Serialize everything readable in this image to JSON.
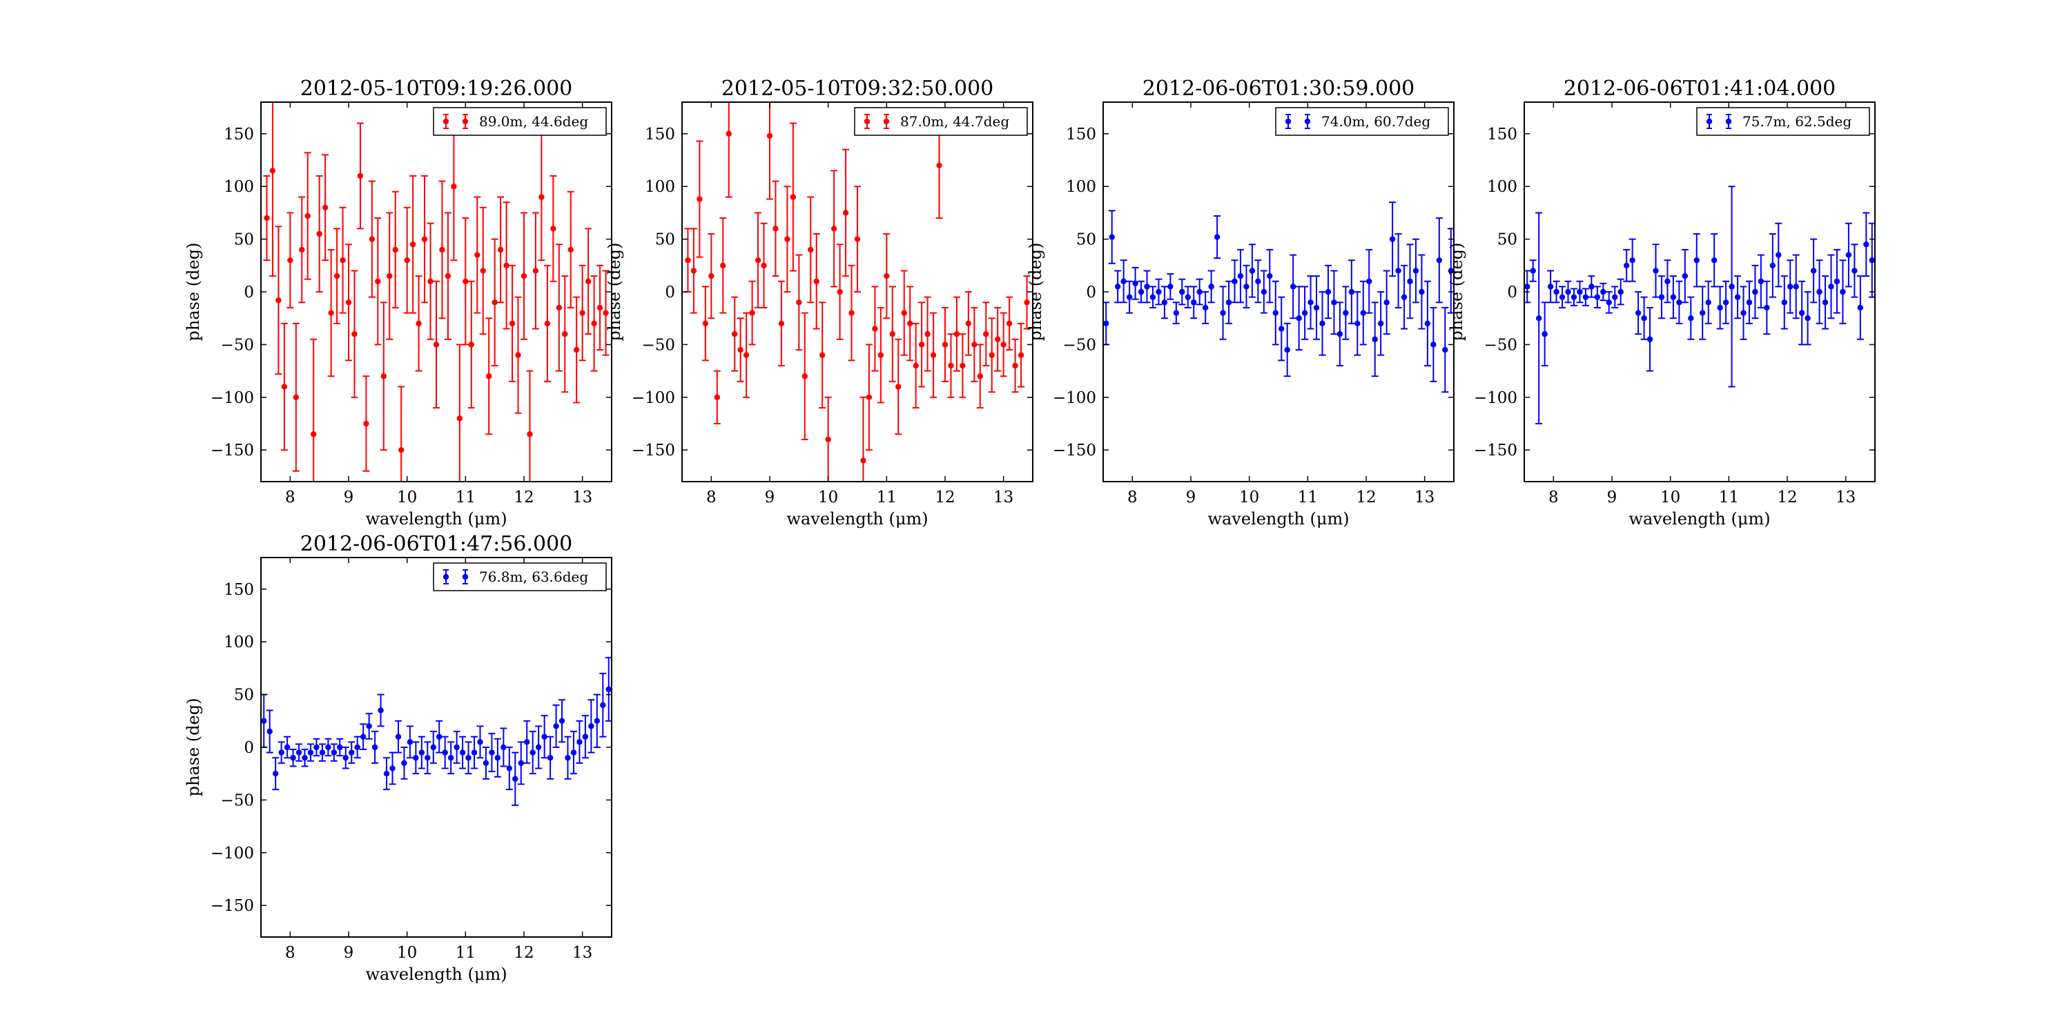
{
  "chart_data": [
    {
      "type": "scatter",
      "title": "2012-05-10T09:19:26.000",
      "xlabel": "wavelength (μm)",
      "ylabel": "phase (deg)",
      "xlim": [
        7.5,
        13.5
      ],
      "ylim": [
        -180,
        180
      ],
      "xticks": [
        "8",
        "9",
        "10",
        "11",
        "12",
        "13"
      ],
      "yticks": [
        "150",
        "100",
        "50",
        "0",
        "−50",
        "−100",
        "−150"
      ],
      "legend_position": "top-right",
      "series": [
        {
          "name": "89.0m, 44.6deg",
          "color": "#ff0000",
          "x": [
            7.6,
            7.7,
            7.8,
            7.9,
            8.0,
            8.1,
            8.2,
            8.3,
            8.4,
            8.5,
            8.6,
            8.7,
            8.8,
            8.9,
            9.0,
            9.1,
            9.2,
            9.3,
            9.4,
            9.5,
            9.6,
            9.7,
            9.8,
            9.9,
            10.0,
            10.1,
            10.2,
            10.3,
            10.4,
            10.5,
            10.6,
            10.7,
            10.8,
            10.9,
            11.0,
            11.1,
            11.2,
            11.3,
            11.4,
            11.5,
            11.6,
            11.7,
            11.8,
            11.9,
            12.0,
            12.1,
            12.2,
            12.3,
            12.4,
            12.5,
            12.6,
            12.7,
            12.8,
            12.9,
            13.0,
            13.1,
            13.2,
            13.3,
            13.4
          ],
          "y": [
            70,
            115,
            -8,
            -90,
            30,
            -100,
            40,
            72,
            -135,
            55,
            80,
            -20,
            15,
            30,
            -10,
            -40,
            110,
            -125,
            50,
            10,
            -80,
            15,
            40,
            -150,
            30,
            45,
            -30,
            50,
            10,
            -50,
            40,
            15,
            100,
            -120,
            10,
            -50,
            35,
            20,
            -80,
            -10,
            40,
            25,
            -30,
            -60,
            15,
            -135,
            20,
            90,
            -30,
            60,
            -15,
            -40,
            40,
            -55,
            -20,
            10,
            -30,
            -15,
            -20
          ],
          "err": [
            40,
            100,
            70,
            60,
            45,
            70,
            50,
            60,
            90,
            55,
            50,
            60,
            45,
            50,
            55,
            60,
            50,
            45,
            55,
            60,
            70,
            60,
            55,
            60,
            50,
            65,
            45,
            60,
            55,
            60,
            65,
            60,
            70,
            70,
            60,
            60,
            55,
            60,
            55,
            60,
            50,
            60,
            55,
            55,
            60,
            60,
            55,
            60,
            55,
            50,
            60,
            55,
            55,
            50,
            45,
            50,
            45,
            40,
            40
          ]
        }
      ]
    },
    {
      "type": "scatter",
      "title": "2012-05-10T09:32:50.000",
      "xlabel": "wavelength (μm)",
      "ylabel": "phase (deg)",
      "xlim": [
        7.5,
        13.5
      ],
      "ylim": [
        -180,
        180
      ],
      "xticks": [
        "8",
        "9",
        "10",
        "11",
        "12",
        "13"
      ],
      "yticks": [
        "150",
        "100",
        "50",
        "0",
        "−50",
        "−100",
        "−150"
      ],
      "legend_position": "top-right",
      "series": [
        {
          "name": "87.0m, 44.7deg",
          "color": "#ff0000",
          "x": [
            7.6,
            7.7,
            7.8,
            7.9,
            8.0,
            8.1,
            8.2,
            8.3,
            8.4,
            8.5,
            8.6,
            8.7,
            8.8,
            8.9,
            9.0,
            9.1,
            9.2,
            9.3,
            9.4,
            9.5,
            9.6,
            9.7,
            9.8,
            9.9,
            10.0,
            10.1,
            10.2,
            10.3,
            10.4,
            10.5,
            10.6,
            10.7,
            10.8,
            10.9,
            11.0,
            11.1,
            11.2,
            11.3,
            11.4,
            11.5,
            11.6,
            11.7,
            11.8,
            11.9,
            12.0,
            12.1,
            12.2,
            12.3,
            12.4,
            12.5,
            12.6,
            12.7,
            12.8,
            12.9,
            13.0,
            13.1,
            13.2,
            13.3,
            13.4
          ],
          "y": [
            30,
            20,
            88,
            -30,
            15,
            -100,
            25,
            150,
            -40,
            -55,
            -60,
            -20,
            30,
            25,
            148,
            60,
            -30,
            50,
            90,
            -10,
            -80,
            40,
            10,
            -60,
            -140,
            60,
            0,
            75,
            -20,
            50,
            -160,
            -100,
            -35,
            -60,
            15,
            -40,
            -90,
            -20,
            -30,
            -70,
            -50,
            -40,
            -60,
            120,
            -50,
            -70,
            -40,
            -70,
            -30,
            -50,
            -80,
            -40,
            -60,
            -45,
            -50,
            -30,
            -70,
            -60,
            -10
          ],
          "err": [
            30,
            40,
            55,
            35,
            40,
            25,
            45,
            60,
            35,
            30,
            40,
            30,
            45,
            40,
            60,
            45,
            40,
            50,
            70,
            45,
            60,
            50,
            45,
            50,
            40,
            55,
            45,
            60,
            45,
            50,
            60,
            50,
            40,
            45,
            40,
            45,
            45,
            40,
            35,
            40,
            40,
            35,
            40,
            50,
            35,
            30,
            35,
            30,
            30,
            35,
            30,
            30,
            35,
            30,
            30,
            25,
            25,
            30,
            25
          ]
        }
      ]
    },
    {
      "type": "scatter",
      "title": "2012-06-06T01:30:59.000",
      "xlabel": "wavelength (μm)",
      "ylabel": "phase (deg)",
      "xlim": [
        7.5,
        13.5
      ],
      "ylim": [
        -180,
        180
      ],
      "xticks": [
        "8",
        "9",
        "10",
        "11",
        "12",
        "13"
      ],
      "yticks": [
        "150",
        "100",
        "50",
        "0",
        "−50",
        "−100",
        "−150"
      ],
      "legend_position": "top-right",
      "series": [
        {
          "name": "74.0m, 60.7deg",
          "color": "#0000ff",
          "x": [
            7.55,
            7.65,
            7.75,
            7.85,
            7.95,
            8.05,
            8.15,
            8.25,
            8.35,
            8.45,
            8.55,
            8.65,
            8.75,
            8.85,
            8.95,
            9.05,
            9.15,
            9.25,
            9.35,
            9.45,
            9.55,
            9.65,
            9.75,
            9.85,
            9.95,
            10.05,
            10.15,
            10.25,
            10.35,
            10.45,
            10.55,
            10.65,
            10.75,
            10.85,
            10.95,
            11.05,
            11.15,
            11.25,
            11.35,
            11.45,
            11.55,
            11.65,
            11.75,
            11.85,
            11.95,
            12.05,
            12.15,
            12.25,
            12.35,
            12.45,
            12.55,
            12.65,
            12.75,
            12.85,
            12.95,
            13.05,
            13.15,
            13.25,
            13.35,
            13.45
          ],
          "y": [
            -30,
            52,
            5,
            10,
            -5,
            8,
            0,
            5,
            -5,
            0,
            -10,
            5,
            -20,
            0,
            -5,
            -10,
            0,
            -15,
            5,
            52,
            -20,
            -10,
            10,
            15,
            5,
            20,
            10,
            0,
            15,
            -20,
            -35,
            -55,
            5,
            -25,
            -20,
            -10,
            -15,
            -30,
            0,
            -10,
            -40,
            -20,
            0,
            -30,
            -20,
            10,
            -45,
            -30,
            -10,
            50,
            20,
            -5,
            10,
            20,
            0,
            -30,
            -50,
            30,
            -55,
            20
          ],
          "err": [
            20,
            25,
            15,
            20,
            15,
            15,
            10,
            15,
            10,
            12,
            15,
            12,
            10,
            12,
            10,
            15,
            12,
            15,
            15,
            20,
            25,
            20,
            20,
            25,
            20,
            25,
            20,
            20,
            25,
            30,
            30,
            25,
            30,
            30,
            25,
            25,
            30,
            30,
            25,
            30,
            30,
            25,
            30,
            30,
            30,
            30,
            35,
            30,
            30,
            35,
            35,
            30,
            35,
            30,
            35,
            40,
            35,
            40,
            40,
            40
          ]
        }
      ]
    },
    {
      "type": "scatter",
      "title": "2012-06-06T01:41:04.000",
      "xlabel": "wavelength (μm)",
      "ylabel": "phase (deg)",
      "xlim": [
        7.5,
        13.5
      ],
      "ylim": [
        -180,
        180
      ],
      "xticks": [
        "8",
        "9",
        "10",
        "11",
        "12",
        "13"
      ],
      "yticks": [
        "150",
        "100",
        "50",
        "0",
        "−50",
        "−100",
        "−150"
      ],
      "legend_position": "top-right",
      "series": [
        {
          "name": "75.7m, 62.5deg",
          "color": "#0000ff",
          "x": [
            7.55,
            7.65,
            7.75,
            7.85,
            7.95,
            8.05,
            8.15,
            8.25,
            8.35,
            8.45,
            8.55,
            8.65,
            8.75,
            8.85,
            8.95,
            9.05,
            9.15,
            9.25,
            9.35,
            9.45,
            9.55,
            9.65,
            9.75,
            9.85,
            9.95,
            10.05,
            10.15,
            10.25,
            10.35,
            10.45,
            10.55,
            10.65,
            10.75,
            10.85,
            10.95,
            11.05,
            11.15,
            11.25,
            11.35,
            11.45,
            11.55,
            11.65,
            11.75,
            11.85,
            11.95,
            12.05,
            12.15,
            12.25,
            12.35,
            12.45,
            12.55,
            12.65,
            12.75,
            12.85,
            12.95,
            13.05,
            13.15,
            13.25,
            13.35,
            13.45
          ],
          "y": [
            5,
            20,
            -25,
            -40,
            5,
            0,
            -5,
            0,
            -5,
            0,
            -5,
            5,
            -5,
            0,
            -10,
            -5,
            0,
            25,
            30,
            -20,
            -25,
            -45,
            20,
            -5,
            10,
            -5,
            -10,
            15,
            -25,
            30,
            -20,
            -10,
            30,
            -15,
            -10,
            5,
            -5,
            -20,
            -10,
            0,
            10,
            -15,
            25,
            35,
            -10,
            5,
            5,
            -20,
            -25,
            20,
            0,
            -10,
            5,
            10,
            0,
            35,
            20,
            -15,
            45,
            30
          ],
          "err": [
            15,
            10,
            100,
            30,
            15,
            10,
            10,
            10,
            8,
            10,
            8,
            10,
            10,
            8,
            10,
            10,
            12,
            15,
            20,
            20,
            20,
            30,
            25,
            20,
            20,
            20,
            20,
            25,
            20,
            25,
            25,
            20,
            25,
            20,
            20,
            95,
            20,
            25,
            20,
            25,
            25,
            25,
            30,
            30,
            25,
            25,
            30,
            30,
            25,
            30,
            30,
            25,
            30,
            30,
            30,
            30,
            25,
            30,
            30,
            35
          ]
        }
      ]
    },
    {
      "type": "scatter",
      "title": "2012-06-06T01:47:56.000",
      "xlabel": "wavelength (μm)",
      "ylabel": "phase (deg)",
      "xlim": [
        7.5,
        13.5
      ],
      "ylim": [
        -180,
        180
      ],
      "xticks": [
        "8",
        "9",
        "10",
        "11",
        "12",
        "13"
      ],
      "yticks": [
        "150",
        "100",
        "50",
        "0",
        "−50",
        "−100",
        "−150"
      ],
      "legend_position": "top-right",
      "series": [
        {
          "name": "76.8m, 63.6deg",
          "color": "#0000ff",
          "x": [
            7.55,
            7.65,
            7.75,
            7.85,
            7.95,
            8.05,
            8.15,
            8.25,
            8.35,
            8.45,
            8.55,
            8.65,
            8.75,
            8.85,
            8.95,
            9.05,
            9.15,
            9.25,
            9.35,
            9.45,
            9.55,
            9.65,
            9.75,
            9.85,
            9.95,
            10.05,
            10.15,
            10.25,
            10.35,
            10.45,
            10.55,
            10.65,
            10.75,
            10.85,
            10.95,
            11.05,
            11.15,
            11.25,
            11.35,
            11.45,
            11.55,
            11.65,
            11.75,
            11.85,
            11.95,
            12.05,
            12.15,
            12.25,
            12.35,
            12.45,
            12.55,
            12.65,
            12.75,
            12.85,
            12.95,
            13.05,
            13.15,
            13.25,
            13.35,
            13.45
          ],
          "y": [
            25,
            15,
            -25,
            -5,
            0,
            -10,
            -5,
            -10,
            -5,
            0,
            -5,
            0,
            -5,
            0,
            -10,
            -5,
            0,
            10,
            20,
            0,
            35,
            -25,
            -20,
            10,
            -15,
            5,
            -10,
            -5,
            -10,
            0,
            10,
            -5,
            -10,
            0,
            -5,
            -10,
            -5,
            5,
            -15,
            -5,
            -10,
            0,
            -20,
            -30,
            -15,
            5,
            -5,
            0,
            10,
            -10,
            20,
            25,
            -10,
            -5,
            5,
            10,
            20,
            25,
            40,
            55
          ],
          "err": [
            25,
            20,
            15,
            10,
            10,
            8,
            8,
            8,
            8,
            8,
            8,
            8,
            8,
            8,
            10,
            10,
            10,
            12,
            12,
            15,
            15,
            15,
            15,
            15,
            15,
            15,
            15,
            15,
            15,
            15,
            15,
            15,
            15,
            15,
            15,
            15,
            15,
            15,
            15,
            18,
            18,
            18,
            20,
            25,
            20,
            20,
            20,
            20,
            20,
            20,
            20,
            20,
            20,
            20,
            20,
            20,
            25,
            25,
            30,
            30
          ]
        }
      ]
    }
  ]
}
